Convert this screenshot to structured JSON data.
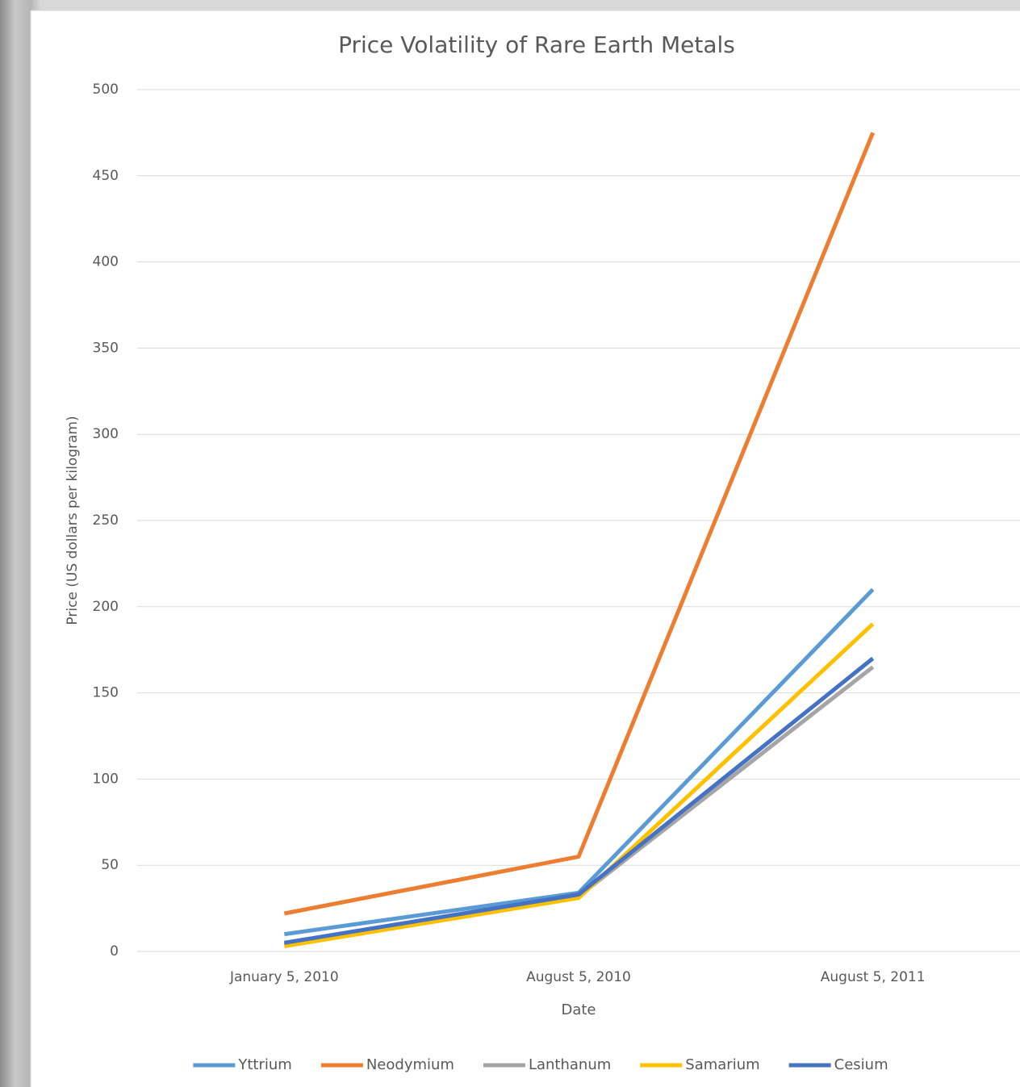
{
  "chart_data": {
    "type": "line",
    "title": "Price Volatility of Rare Earth Metals",
    "x_label": "Date",
    "y_label": "Price (US dollars per kilogram)",
    "categories": [
      "January 5, 2010",
      "August 5, 2010",
      "August 5, 2011"
    ],
    "series": [
      {
        "name": "Yttrium",
        "color": "#5b9bd5",
        "values": [
          10,
          34,
          210
        ]
      },
      {
        "name": "Neodymium",
        "color": "#ed7d31",
        "values": [
          22,
          55,
          475
        ]
      },
      {
        "name": "Lanthanum",
        "color": "#a5a5a5",
        "values": [
          4,
          32,
          165
        ]
      },
      {
        "name": "Samarium",
        "color": "#ffc000",
        "values": [
          3,
          31,
          190
        ]
      },
      {
        "name": "Cesium",
        "color": "#4472c4",
        "values": [
          5,
          33,
          170
        ]
      }
    ],
    "ylim": [
      0,
      500
    ],
    "yticks": [
      0,
      50,
      100,
      150,
      200,
      250,
      300,
      350,
      400,
      450,
      500
    ],
    "grid": true,
    "legend": "bottom"
  }
}
